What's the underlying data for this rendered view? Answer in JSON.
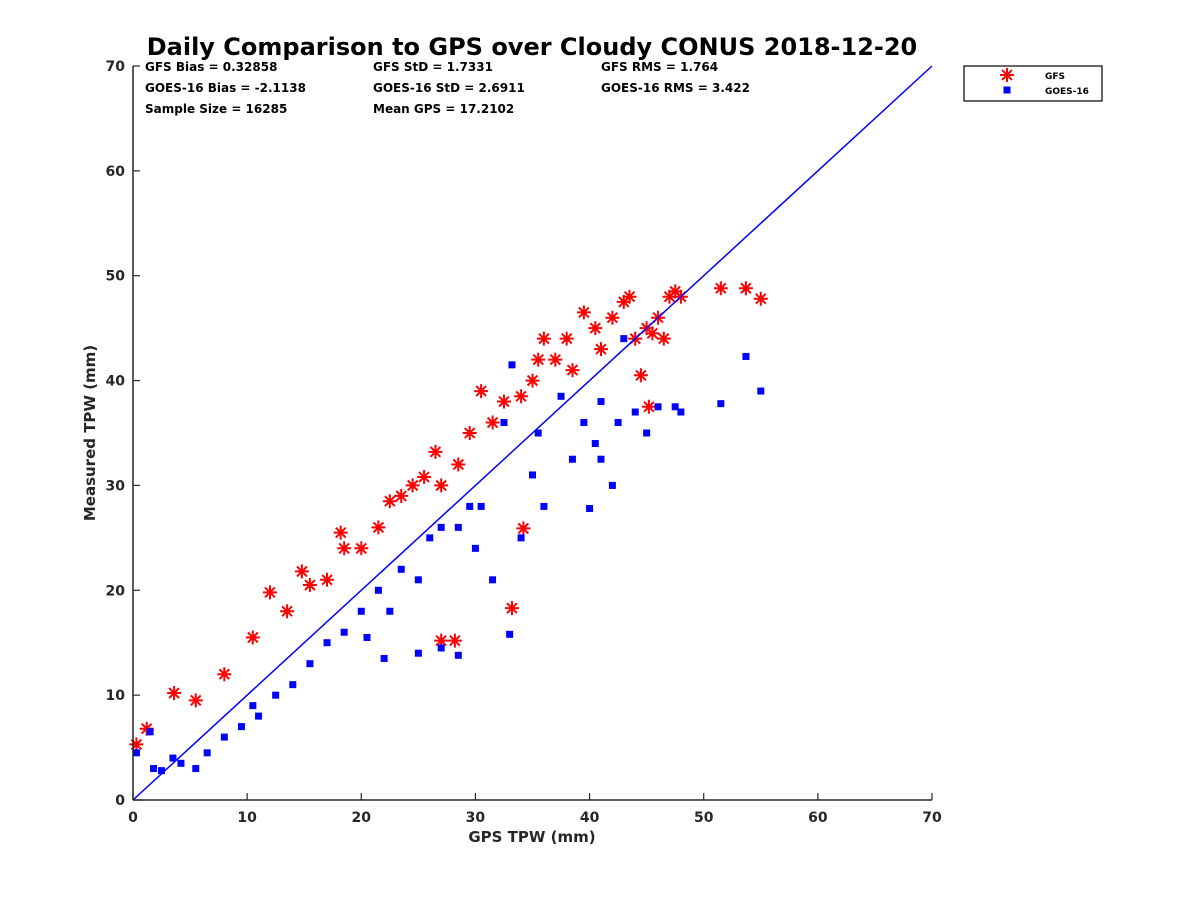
{
  "chart_data": {
    "type": "scatter",
    "title": "Daily Comparison to GPS over Cloudy CONUS 2018-12-20",
    "xlabel": "GPS TPW (mm)",
    "ylabel": "Measured TPW (mm)",
    "xlim": [
      0,
      70
    ],
    "ylim": [
      0,
      70
    ],
    "xticks": [
      "0",
      "10",
      "20",
      "30",
      "40",
      "50",
      "60",
      "70"
    ],
    "yticks": [
      "0",
      "10",
      "20",
      "30",
      "40",
      "50",
      "60",
      "70"
    ],
    "grid": false,
    "legend_position": "outside top-right",
    "stats": [
      [
        "GFS Bias = 0.32858",
        "GFS StD = 1.7331",
        "GFS RMS = 1.764"
      ],
      [
        "GOES-16 Bias = -2.1138",
        "GOES-16 StD = 2.6911",
        "GOES-16 RMS = 3.422"
      ],
      [
        "Sample Size = 16285",
        "Mean GPS = 17.2102"
      ]
    ],
    "reference_line": {
      "x": [
        0,
        70
      ],
      "y": [
        0,
        70
      ],
      "color": "#0000ff"
    },
    "series": [
      {
        "name": "GFS",
        "marker": "asterisk",
        "color": "#ff0000",
        "points": [
          [
            0.3,
            5.3
          ],
          [
            1.2,
            6.8
          ],
          [
            3.6,
            10.2
          ],
          [
            5.5,
            9.5
          ],
          [
            8,
            12
          ],
          [
            10.5,
            15.5
          ],
          [
            12,
            19.8
          ],
          [
            13.5,
            18
          ],
          [
            14.8,
            21.8
          ],
          [
            15.5,
            20.5
          ],
          [
            17,
            21
          ],
          [
            18.2,
            25.5
          ],
          [
            18.5,
            24
          ],
          [
            20,
            24
          ],
          [
            21.5,
            26
          ],
          [
            22.5,
            28.5
          ],
          [
            23.5,
            29
          ],
          [
            24.5,
            30
          ],
          [
            25.5,
            30.8
          ],
          [
            26.5,
            33.2
          ],
          [
            27,
            30
          ],
          [
            28.5,
            32
          ],
          [
            29.5,
            35
          ],
          [
            30.5,
            39
          ],
          [
            31.5,
            36
          ],
          [
            32.5,
            38
          ],
          [
            33.2,
            18.3
          ],
          [
            34,
            38.5
          ],
          [
            35,
            40
          ],
          [
            35.5,
            42
          ],
          [
            36,
            44
          ],
          [
            37,
            42
          ],
          [
            38,
            44
          ],
          [
            38.5,
            41
          ],
          [
            39.5,
            46.5
          ],
          [
            40.5,
            45
          ],
          [
            41,
            43
          ],
          [
            42,
            46
          ],
          [
            43,
            47.5
          ],
          [
            43.5,
            48
          ],
          [
            44,
            44
          ],
          [
            45,
            45
          ],
          [
            45.5,
            44.5
          ],
          [
            46,
            46
          ],
          [
            46.5,
            44
          ],
          [
            47,
            48
          ],
          [
            47.5,
            48.5
          ],
          [
            48,
            48
          ],
          [
            51.5,
            48.8
          ],
          [
            53.7,
            48.8
          ],
          [
            55,
            47.8
          ],
          [
            27,
            15.2
          ],
          [
            28.2,
            15.2
          ],
          [
            34.2,
            25.9
          ],
          [
            45.2,
            37.5
          ],
          [
            44.5,
            40.5
          ]
        ]
      },
      {
        "name": "GOES-16",
        "marker": "square",
        "color": "#0000ff",
        "points": [
          [
            0.3,
            4.5
          ],
          [
            1.5,
            6.5
          ],
          [
            1.8,
            3
          ],
          [
            2.5,
            2.8
          ],
          [
            3.5,
            4
          ],
          [
            4.2,
            3.5
          ],
          [
            5.5,
            3
          ],
          [
            6.5,
            4.5
          ],
          [
            8,
            6
          ],
          [
            9.5,
            7
          ],
          [
            10.5,
            9
          ],
          [
            11,
            8
          ],
          [
            12.5,
            10
          ],
          [
            14,
            11
          ],
          [
            15.5,
            13
          ],
          [
            17,
            15
          ],
          [
            18.5,
            16
          ],
          [
            20,
            18
          ],
          [
            21.5,
            20
          ],
          [
            22.5,
            18
          ],
          [
            23.5,
            22
          ],
          [
            25,
            21
          ],
          [
            26,
            25
          ],
          [
            27,
            26
          ],
          [
            28.5,
            26
          ],
          [
            29.5,
            28
          ],
          [
            30.5,
            28
          ],
          [
            32.5,
            36
          ],
          [
            33,
            15.8
          ],
          [
            33.2,
            41.5
          ],
          [
            35.5,
            35
          ],
          [
            37.5,
            38.5
          ],
          [
            38.5,
            32.5
          ],
          [
            39.5,
            36
          ],
          [
            40,
            27.8
          ],
          [
            40.5,
            34
          ],
          [
            41,
            38
          ],
          [
            42.5,
            36
          ],
          [
            43,
            44
          ],
          [
            44,
            37
          ],
          [
            45,
            35
          ],
          [
            46,
            37.5
          ],
          [
            47.5,
            37.5
          ],
          [
            48,
            37
          ],
          [
            51.5,
            37.8
          ],
          [
            53.7,
            42.3
          ],
          [
            55,
            39
          ],
          [
            20.5,
            15.5
          ],
          [
            22,
            13.5
          ],
          [
            25,
            14
          ],
          [
            27,
            14.5
          ],
          [
            28.5,
            13.8
          ],
          [
            31.5,
            21
          ],
          [
            34,
            25
          ],
          [
            36,
            28
          ],
          [
            30,
            24
          ],
          [
            35,
            31
          ],
          [
            41,
            32.5
          ],
          [
            42,
            30
          ]
        ]
      }
    ]
  }
}
